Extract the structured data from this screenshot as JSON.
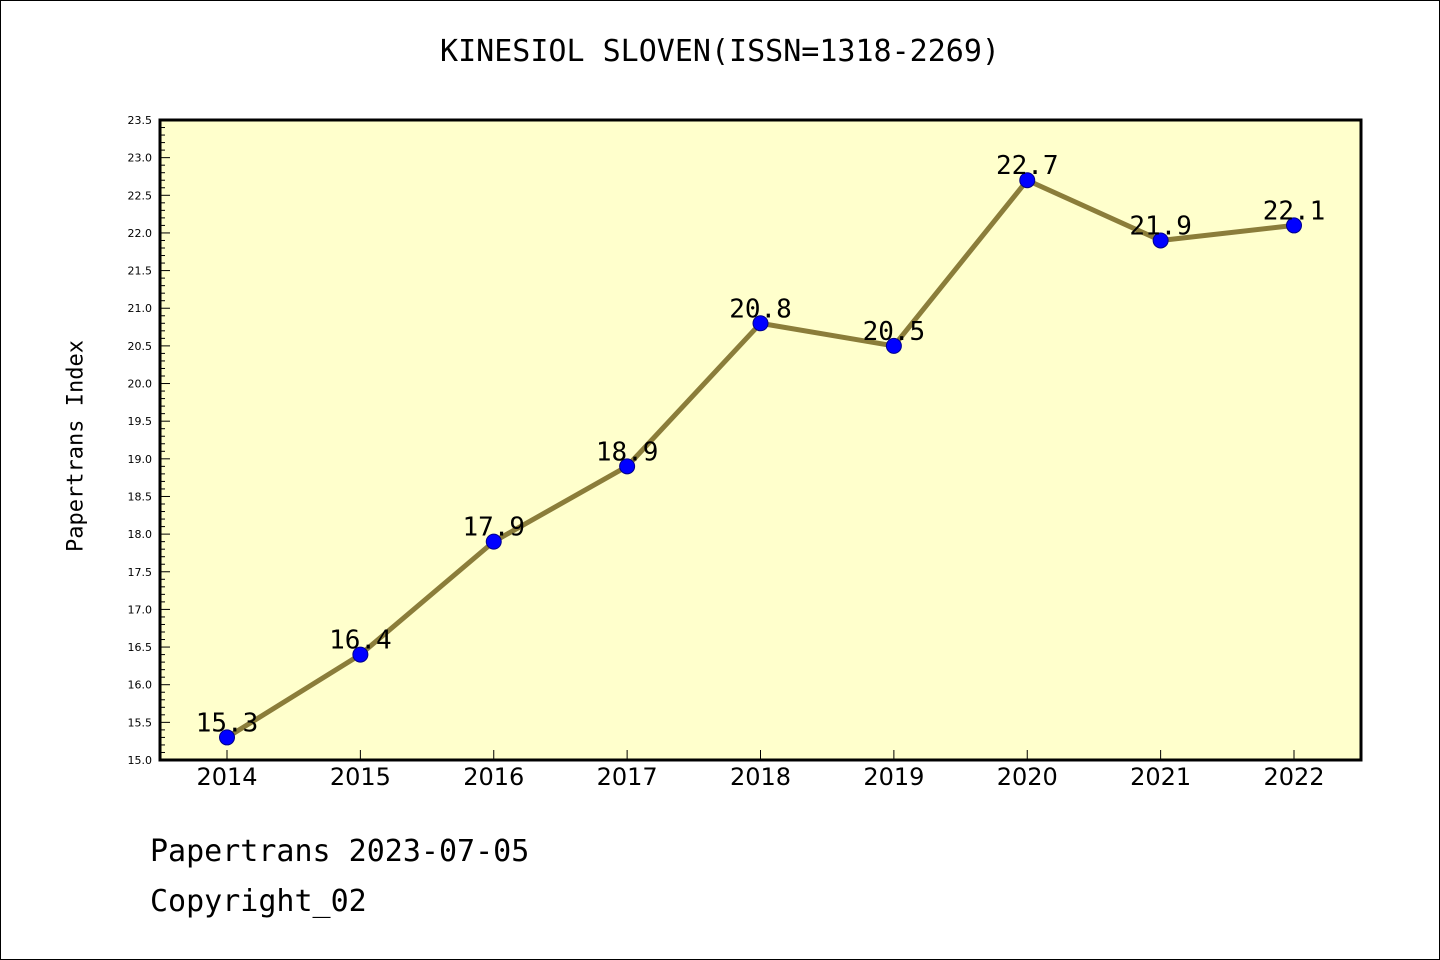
{
  "chart_data": {
    "type": "line",
    "title": "KINESIOL SLOVEN(ISSN=1318-2269)",
    "xlabel": "",
    "ylabel": "Papertrans Index",
    "categories": [
      "2014",
      "2015",
      "2016",
      "2017",
      "2018",
      "2019",
      "2020",
      "2021",
      "2022"
    ],
    "series": [
      {
        "values": [
          15.3,
          16.4,
          17.9,
          18.9,
          20.8,
          20.5,
          22.7,
          21.9,
          22.1
        ],
        "data_labels": [
          "15.3",
          "16.4",
          "17.9",
          "18.9",
          "20.8",
          "20.5",
          "22.7",
          "21.9",
          "22.1"
        ]
      }
    ],
    "ylim": [
      15.0,
      23.5
    ],
    "yticks": [
      "15.0",
      "15.5",
      "16.0",
      "16.5",
      "17.0",
      "17.5",
      "18.0",
      "18.5",
      "19.0",
      "19.5",
      "20.0",
      "20.5",
      "21.0",
      "21.5",
      "22.0",
      "22.5",
      "23.0",
      "23.5"
    ],
    "grid": false,
    "colors": {
      "plot_background": "#ffffcc",
      "line": "#8b7d3a",
      "marker": "#0000ff",
      "marker_edge": "#00008b"
    }
  },
  "footer": {
    "line1": "Papertrans 2023-07-05",
    "line2": "Copyright_02"
  }
}
